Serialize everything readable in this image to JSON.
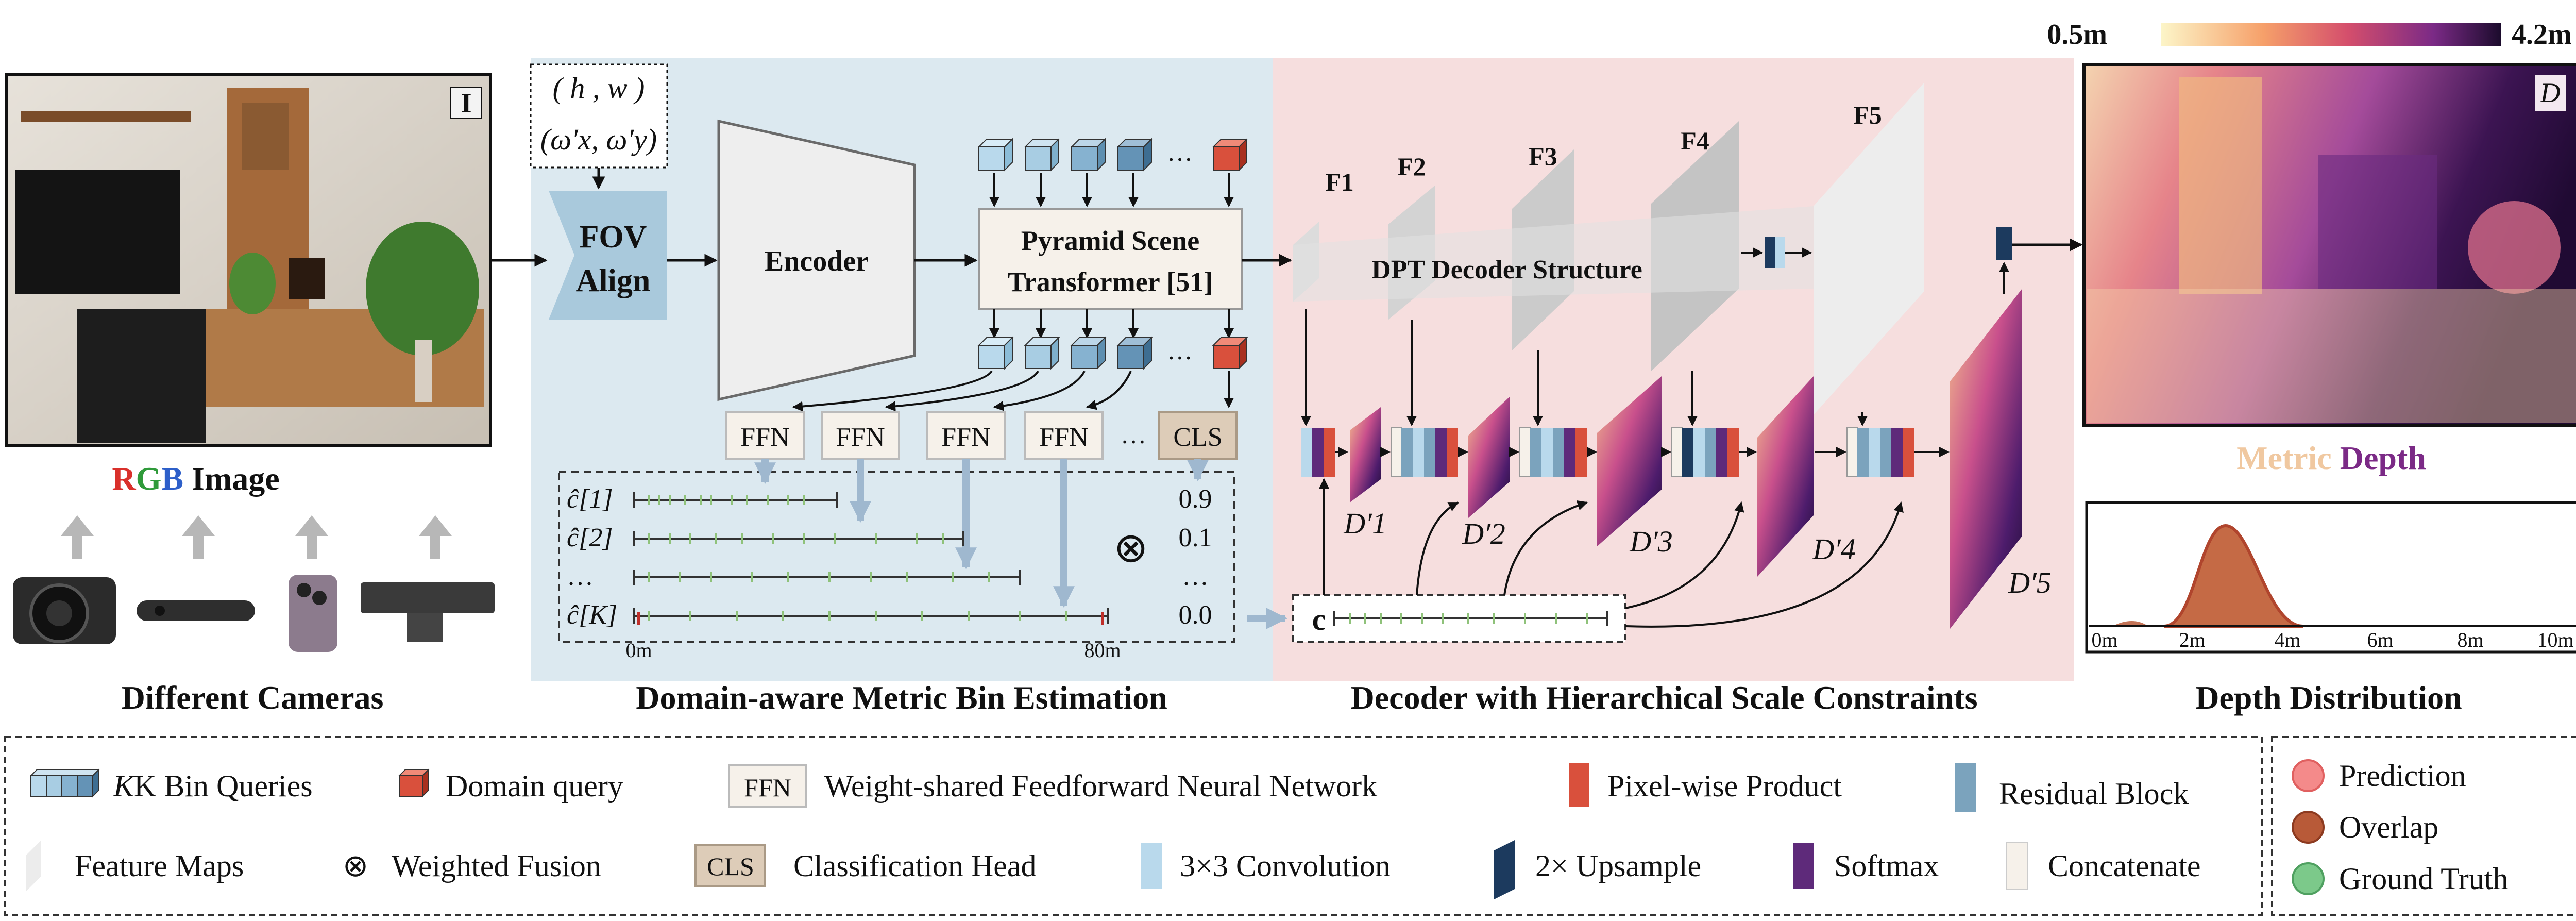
{
  "input": {
    "image_label": "I",
    "caption": [
      "R",
      "G",
      "B",
      " Image"
    ],
    "fov_params_line1": "( h , w )",
    "fov_params_line2": "(ω′x, ω′y)"
  },
  "blocks": {
    "fov_align_line1": "FOV",
    "fov_align_line2": "Align",
    "encoder": "Encoder",
    "pst_line1": "Pyramid Scene",
    "pst_line2": "Transformer [51]",
    "dpt": "DPT Decoder Structure"
  },
  "cameras": {
    "caption": "Different Cameras"
  },
  "bins": {
    "ffn_labels": [
      "FFN",
      "FFN",
      "FFN",
      "FFN"
    ],
    "ellipsis": "…",
    "cls_label": "CLS",
    "row_labels": [
      "ĉ[1]",
      "ĉ[2]",
      "…",
      "ĉ[K]"
    ],
    "weights": [
      "0.9",
      "0.1",
      "…",
      "0.0"
    ],
    "fusion_symbol": "⊗",
    "axis_min": "0m",
    "axis_max": "80m",
    "section_title": "Domain-aware Metric Bin Estimation",
    "c_label": "c"
  },
  "decoder": {
    "section_title": "Decoder with Hierarchical Scale Constraints",
    "features": [
      "F1",
      "F2",
      "F3",
      "F4",
      "F5"
    ],
    "depths": [
      "D′1",
      "D′2",
      "D′3",
      "D′4",
      "D′5"
    ]
  },
  "output": {
    "colorbar_min": "0.5m",
    "colorbar_max": "4.2m",
    "depth_label": "D",
    "caption_part1": "Metric",
    "caption_part2": " Depth",
    "dist_caption": "Depth Distribution",
    "dist_ticks": [
      "0m",
      "2m",
      "4m",
      "6m",
      "8m",
      "10m"
    ]
  },
  "legend": {
    "items": [
      "K Bin Queries",
      "Domain query",
      "Weight-shared Feedforward Neural Network",
      "Pixel-wise Product",
      "Residual Block",
      "Feature Maps",
      "Weighted Fusion",
      "Classification Head",
      "3×3 Convolution",
      "2× Upsample",
      "Softmax",
      "Concatenate"
    ],
    "ffn_box": "FFN",
    "cls_box": "CLS",
    "fusion_symbol": "⊗",
    "distribution": [
      "Prediction",
      "Overlap",
      "Ground Truth"
    ]
  },
  "colors": {
    "bin_panel": "#dce9f0",
    "decoder_panel": "#f6dede",
    "fov_align": "#a9c9dc",
    "bin_ticks": "#8fc27a",
    "domain_query": "#d9503c",
    "residual": "#7ba3bd",
    "upsample": "#1c3a5e",
    "softmax": "#5e2a7a",
    "concat": "#f6f1ea",
    "bin_title": "#3f7793",
    "decoder_title": "#b8453a",
    "prediction": "#f08080",
    "overlap": "#b85a38",
    "ground_truth": "#7cc98a"
  }
}
